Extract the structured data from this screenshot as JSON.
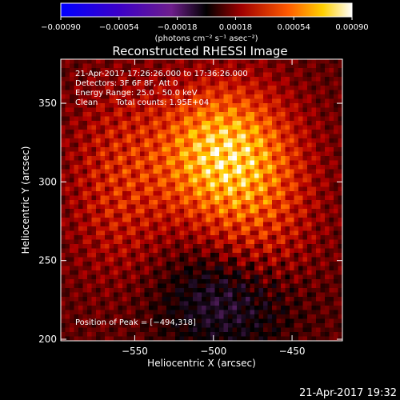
{
  "chart_data": {
    "type": "heatmap",
    "title": "Reconstructed RHESSI Image",
    "xlabel": "Heliocentric X (arcsec)",
    "ylabel": "Heliocentric Y (arcsec)",
    "xlim": [
      -597,
      -418
    ],
    "ylim": [
      199,
      378
    ],
    "xticks": [
      {
        "value": -550,
        "label": "−550"
      },
      {
        "value": -500,
        "label": "−500"
      },
      {
        "value": -450,
        "label": "−450"
      }
    ],
    "yticks": [
      {
        "value": 200,
        "label": "200"
      },
      {
        "value": 250,
        "label": "250"
      },
      {
        "value": 300,
        "label": "300"
      },
      {
        "value": 350,
        "label": "350"
      }
    ],
    "colorbar": {
      "range": [
        -0.0009,
        0.0009
      ],
      "ticks": [
        {
          "value": -0.0009,
          "label": "−0.00090"
        },
        {
          "value": -0.00054,
          "label": "−0.00054"
        },
        {
          "value": -0.00018,
          "label": "−0.00018"
        },
        {
          "value": 0.00018,
          "label": "0.00018"
        },
        {
          "value": 0.00054,
          "label": "0.00054"
        },
        {
          "value": 0.0009,
          "label": "0.00090"
        }
      ],
      "unit_label": "(photons cm⁻² s⁻¹ asec⁻²)",
      "colors": [
        "#0000ff",
        "#3c00c8",
        "#7c2c8c",
        "#000000",
        "#b40000",
        "#ff5a00",
        "#ffd000",
        "#ffffff"
      ]
    },
    "annotations": [
      "21-Apr-2017 17:26:26.000 to 17:36:26.000",
      "Detectors: 3F 6F 8F, Att 0",
      "Energy Range: 25.0 - 50.0 keV",
      "Clean",
      "Total counts: 1.95E+04"
    ],
    "peak_label": "Position of Peak = [−494,318]",
    "peak": [
      -494,
      318
    ],
    "grid": false
  },
  "footer": {
    "timestamp": "21-Apr-2017 19:32"
  }
}
